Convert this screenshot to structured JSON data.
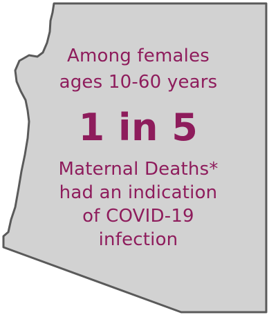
{
  "graphic": {
    "shape_icon": "arizona-state-outline-icon",
    "colors": {
      "state_fill": "#d2d2d2",
      "state_outline": "#5a5a5a",
      "text": "#8e1c5c"
    }
  },
  "headline": {
    "line1": "Among females",
    "line2": "ages 10-60 years"
  },
  "statistic": {
    "value": "1 in 5"
  },
  "description": {
    "line1": "Maternal Deaths*",
    "line2": "had an indication",
    "line3": "of COVID-19",
    "line4": "infection"
  }
}
